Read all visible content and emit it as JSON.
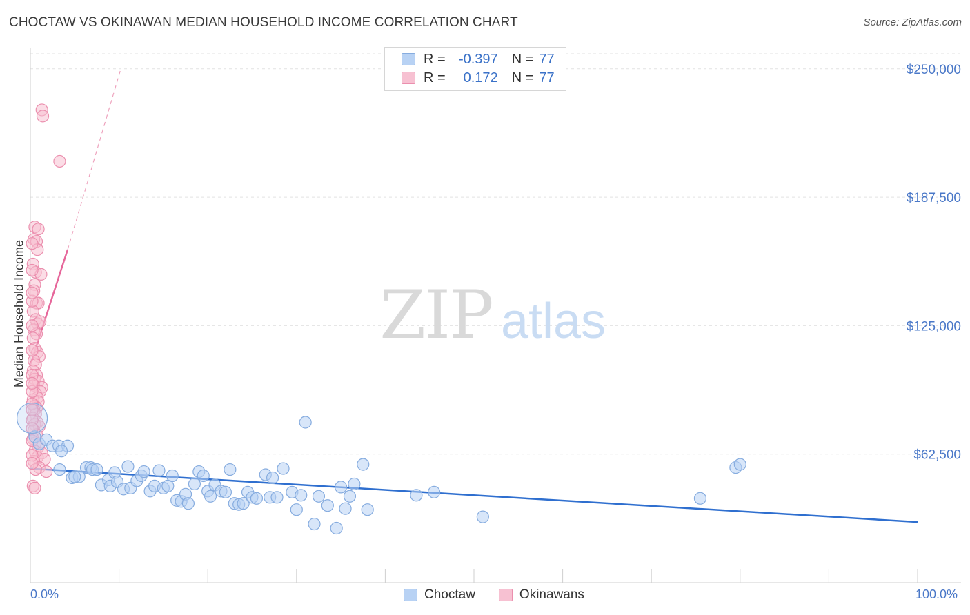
{
  "title": "CHOCTAW VS OKINAWAN MEDIAN HOUSEHOLD INCOME CORRELATION CHART",
  "source": "Source: ZipAtlas.com",
  "watermark": {
    "zip": "ZIP",
    "atlas": "atlas"
  },
  "legend": {
    "rows": [
      {
        "r_label": "R =",
        "r_value": "-0.397",
        "n_label": "N =",
        "n_value": "77"
      },
      {
        "r_label": "R =",
        "r_value": "0.172",
        "n_label": "N =",
        "n_value": "77"
      }
    ]
  },
  "bottom_legend": {
    "choctaw": "Choctaw",
    "okinawans": "Okinawans"
  },
  "colors": {
    "blue": "#4a86d8",
    "blue_fill": "#b8d2f4",
    "pink": "#e8739b",
    "pink_fill": "#f7c1d2",
    "axis_text": "#4a78c8"
  },
  "chart_data": {
    "type": "scatter",
    "title": "CHOCTAW VS OKINAWAN MEDIAN HOUSEHOLD INCOME CORRELATION CHART",
    "xlabel": "",
    "ylabel": "Median Household Income",
    "xlim": [
      0,
      100
    ],
    "ylim": [
      0,
      260000
    ],
    "x_tick_labels": [
      "0.0%",
      "100.0%"
    ],
    "y_ticks": [
      62500,
      125000,
      187500,
      250000
    ],
    "y_tick_labels": [
      "$62,500",
      "$125,000",
      "$187,500",
      "$250,000"
    ],
    "grid": true,
    "legend_position": "top-center",
    "series": [
      {
        "name": "Choctaw",
        "color": "#4a86d8",
        "trend": {
          "x": [
            0,
            100
          ],
          "y": [
            55500,
            29500
          ]
        },
        "points": [
          [
            0.5,
            71000
          ],
          [
            1.0,
            67500
          ],
          [
            1.8,
            69500
          ],
          [
            2.5,
            66500
          ],
          [
            3.2,
            66500
          ],
          [
            4.2,
            66500
          ],
          [
            3.5,
            64000
          ],
          [
            3.3,
            55000
          ],
          [
            4.7,
            51000
          ],
          [
            5.5,
            51500
          ],
          [
            5.0,
            51500
          ],
          [
            6.3,
            56000
          ],
          [
            6.8,
            56000
          ],
          [
            7.0,
            55000
          ],
          [
            7.5,
            55000
          ],
          [
            8.0,
            47500
          ],
          [
            8.8,
            50000
          ],
          [
            9.0,
            47000
          ],
          [
            9.5,
            53500
          ],
          [
            9.8,
            49000
          ],
          [
            10.5,
            45500
          ],
          [
            11.0,
            56500
          ],
          [
            11.3,
            46000
          ],
          [
            12.0,
            49500
          ],
          [
            12.5,
            52000
          ],
          [
            12.8,
            54000
          ],
          [
            13.5,
            44500
          ],
          [
            14.0,
            47000
          ],
          [
            14.5,
            54500
          ],
          [
            15.0,
            46000
          ],
          [
            15.5,
            47000
          ],
          [
            16.0,
            52000
          ],
          [
            16.5,
            40000
          ],
          [
            17.0,
            39500
          ],
          [
            17.5,
            43000
          ],
          [
            17.8,
            38500
          ],
          [
            18.5,
            48000
          ],
          [
            19.0,
            54000
          ],
          [
            19.5,
            52000
          ],
          [
            20.0,
            44500
          ],
          [
            20.3,
            42000
          ],
          [
            20.8,
            47500
          ],
          [
            21.5,
            44500
          ],
          [
            22.0,
            44000
          ],
          [
            22.5,
            55000
          ],
          [
            23.0,
            38500
          ],
          [
            23.5,
            38000
          ],
          [
            24.0,
            38500
          ],
          [
            24.5,
            44000
          ],
          [
            25.0,
            41500
          ],
          [
            25.5,
            41000
          ],
          [
            26.5,
            52500
          ],
          [
            27.0,
            41500
          ],
          [
            27.3,
            51000
          ],
          [
            27.8,
            41500
          ],
          [
            28.5,
            55500
          ],
          [
            29.5,
            44000
          ],
          [
            30.0,
            35500
          ],
          [
            30.5,
            42500
          ],
          [
            31.0,
            78000
          ],
          [
            32.0,
            28500
          ],
          [
            32.5,
            42000
          ],
          [
            33.5,
            37500
          ],
          [
            34.5,
            26500
          ],
          [
            35.0,
            46500
          ],
          [
            35.5,
            36000
          ],
          [
            36.0,
            42000
          ],
          [
            36.5,
            48000
          ],
          [
            37.5,
            57500
          ],
          [
            38.0,
            35500
          ],
          [
            43.5,
            42500
          ],
          [
            45.5,
            44000
          ],
          [
            51.0,
            32000
          ],
          [
            75.5,
            41000
          ],
          [
            79.5,
            56000
          ],
          [
            80.0,
            57500
          ],
          [
            0.2,
            80000
          ]
        ]
      },
      {
        "name": "Okinawans",
        "color": "#e8739b",
        "trend": {
          "x": [
            0,
            4.2
          ],
          "y": [
            106000,
            162000
          ]
        },
        "trend_extension": {
          "x": [
            4.2,
            10.2
          ],
          "y": [
            162000,
            250000
          ]
        },
        "points": [
          [
            1.3,
            230000
          ],
          [
            1.4,
            227000
          ],
          [
            3.3,
            205000
          ],
          [
            0.5,
            173000
          ],
          [
            0.9,
            172000
          ],
          [
            0.4,
            167000
          ],
          [
            0.7,
            166000
          ],
          [
            0.8,
            162000
          ],
          [
            0.3,
            155000
          ],
          [
            0.6,
            151000
          ],
          [
            1.2,
            150000
          ],
          [
            0.5,
            145000
          ],
          [
            0.4,
            142000
          ],
          [
            0.7,
            136000
          ],
          [
            0.9,
            136000
          ],
          [
            0.3,
            132000
          ],
          [
            0.6,
            128000
          ],
          [
            0.8,
            126000
          ],
          [
            1.1,
            127000
          ],
          [
            0.4,
            123000
          ],
          [
            0.7,
            121000
          ],
          [
            0.3,
            119000
          ],
          [
            0.5,
            114000
          ],
          [
            0.8,
            112000
          ],
          [
            1.0,
            110000
          ],
          [
            0.4,
            108000
          ],
          [
            0.6,
            106000
          ],
          [
            0.3,
            103000
          ],
          [
            0.7,
            101000
          ],
          [
            0.5,
            99000
          ],
          [
            0.9,
            98000
          ],
          [
            0.4,
            96000
          ],
          [
            1.3,
            95000
          ],
          [
            1.1,
            93000
          ],
          [
            0.6,
            92000
          ],
          [
            0.8,
            90000
          ],
          [
            0.3,
            89000
          ],
          [
            0.9,
            88000
          ],
          [
            0.5,
            86000
          ],
          [
            0.7,
            85000
          ],
          [
            0.4,
            84000
          ],
          [
            0.6,
            82000
          ],
          [
            0.3,
            80000
          ],
          [
            0.8,
            78000
          ],
          [
            0.5,
            77000
          ],
          [
            1.0,
            76000
          ],
          [
            0.4,
            74000
          ],
          [
            0.7,
            72000
          ],
          [
            0.3,
            70000
          ],
          [
            0.6,
            68000
          ],
          [
            0.9,
            66000
          ],
          [
            0.5,
            64000
          ],
          [
            1.3,
            63000
          ],
          [
            0.8,
            61000
          ],
          [
            1.6,
            60000
          ],
          [
            0.4,
            59000
          ],
          [
            1.0,
            56000
          ],
          [
            1.8,
            54000
          ],
          [
            0.6,
            55000
          ],
          [
            0.3,
            47000
          ],
          [
            0.5,
            46000
          ],
          [
            0.2,
            101000
          ],
          [
            0.2,
            93000
          ],
          [
            0.2,
            87000
          ],
          [
            0.2,
            79000
          ],
          [
            0.2,
            75000
          ],
          [
            0.2,
            69000
          ],
          [
            0.2,
            62000
          ],
          [
            0.2,
            58000
          ],
          [
            0.2,
            113000
          ],
          [
            0.2,
            125000
          ],
          [
            0.2,
            137000
          ],
          [
            0.2,
            141000
          ],
          [
            0.2,
            152000
          ],
          [
            0.2,
            165000
          ],
          [
            0.2,
            97000
          ],
          [
            0.2,
            84000
          ]
        ]
      }
    ]
  }
}
